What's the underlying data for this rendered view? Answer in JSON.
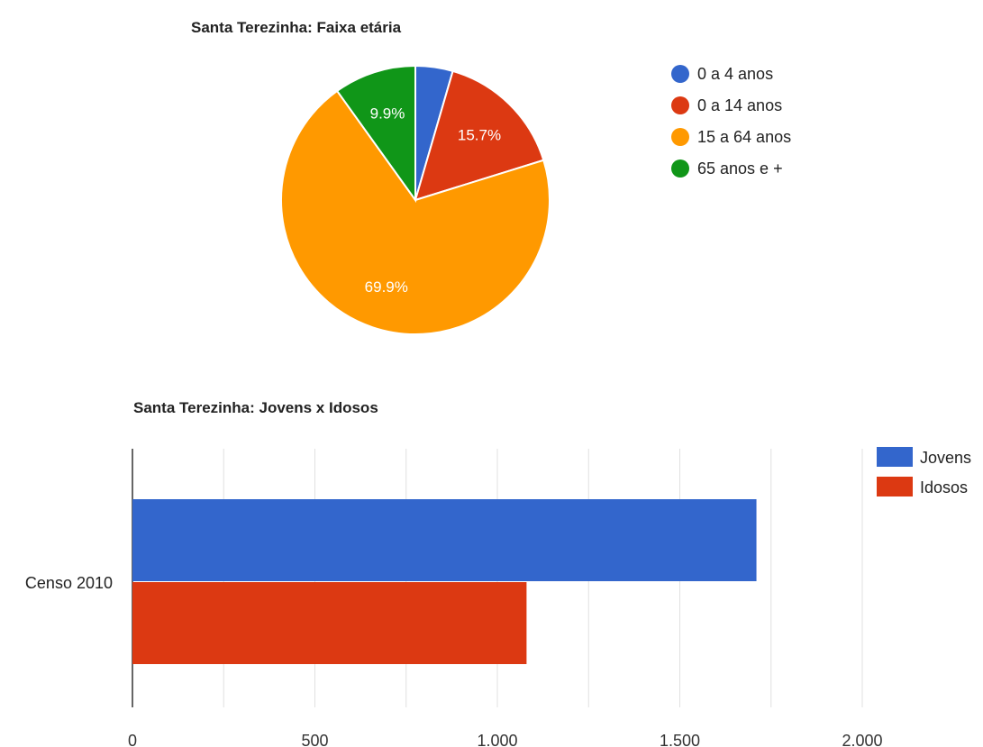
{
  "chart_data": [
    {
      "type": "pie",
      "title": "Santa Terezinha: Faixa etária",
      "slices": [
        {
          "label": "0 a 4 anos",
          "value": 4.5,
          "percent_label": "",
          "color": "#3366cc"
        },
        {
          "label": "0 a 14 anos",
          "value": 15.7,
          "percent_label": "15.7%",
          "color": "#dc3912"
        },
        {
          "label": "15 a 64 anos",
          "value": 69.9,
          "percent_label": "69.9%",
          "color": "#ff9900"
        },
        {
          "label": "65 anos e +",
          "value": 9.9,
          "percent_label": "9.9%",
          "color": "#109618"
        }
      ],
      "legend_position": "right"
    },
    {
      "type": "bar",
      "orientation": "horizontal",
      "title": "Santa Terezinha: Jovens x Idosos",
      "categories": [
        "Censo 2010"
      ],
      "series": [
        {
          "name": "Jovens",
          "values": [
            1710
          ],
          "color": "#3366cc"
        },
        {
          "name": "Idosos",
          "values": [
            1080
          ],
          "color": "#dc3912"
        }
      ],
      "xlim": [
        0,
        2000
      ],
      "ticks": [
        0,
        500,
        1000,
        1500,
        2000
      ],
      "tick_labels": [
        "0",
        "500",
        "1.000",
        "1.500",
        "2.000"
      ],
      "grid": true,
      "legend_position": "right"
    }
  ]
}
